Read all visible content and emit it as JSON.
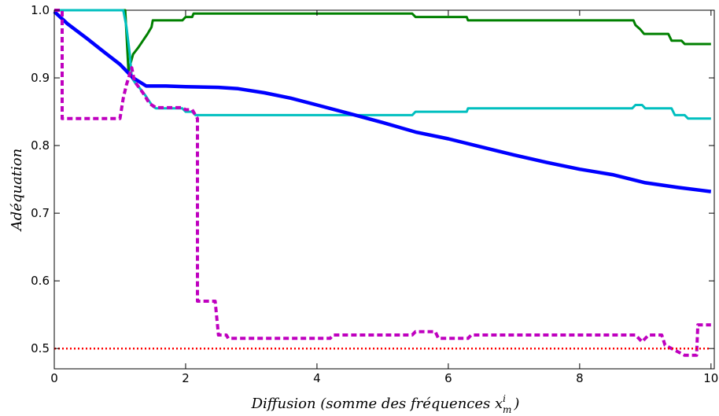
{
  "chart_data": {
    "type": "line",
    "xlabel": "Diffusion (somme des fréquences x",
    "xlabel_sup": "i",
    "xlabel_sub": "m",
    "xlabel_end": ")",
    "ylabel": "Adéquation",
    "xlim": [
      0,
      10.05
    ],
    "ylim": [
      0.47,
      1.0
    ],
    "xticks": [
      0,
      2,
      4,
      6,
      8,
      10
    ],
    "xtick_labels": [
      "0",
      "2",
      "4",
      "6",
      "8",
      "10"
    ],
    "yticks": [
      0.5,
      0.6,
      0.7,
      0.8,
      0.9,
      1.0
    ],
    "ytick_labels": [
      "0.5",
      "0.6",
      "0.7",
      "0.8",
      "0.9",
      "1.0"
    ],
    "grid": false,
    "series": [
      {
        "color": "#008000",
        "style": "solid-steps",
        "points": [
          [
            0,
            1.0
          ],
          [
            1.08,
            1.0
          ],
          [
            1.13,
            0.91
          ],
          [
            1.2,
            0.935
          ],
          [
            1.28,
            0.945
          ],
          [
            1.35,
            0.955
          ],
          [
            1.42,
            0.965
          ],
          [
            1.48,
            0.975
          ],
          [
            1.5,
            0.985
          ],
          [
            1.95,
            0.985
          ],
          [
            2.0,
            0.99
          ],
          [
            2.1,
            0.99
          ],
          [
            2.12,
            0.995
          ],
          [
            5.45,
            0.995
          ],
          [
            5.5,
            0.99
          ],
          [
            6.28,
            0.99
          ],
          [
            6.3,
            0.985
          ],
          [
            8.82,
            0.985
          ],
          [
            8.85,
            0.978
          ],
          [
            8.92,
            0.972
          ],
          [
            8.98,
            0.965
          ],
          [
            9.35,
            0.965
          ],
          [
            9.4,
            0.955
          ],
          [
            9.55,
            0.955
          ],
          [
            9.6,
            0.95
          ],
          [
            10.0,
            0.95
          ]
        ]
      },
      {
        "color": "#00bfbf",
        "style": "solid-steps",
        "points": [
          [
            0,
            1.0
          ],
          [
            1.05,
            1.0
          ],
          [
            1.1,
            0.975
          ],
          [
            1.15,
            0.935
          ],
          [
            1.18,
            0.9
          ],
          [
            1.25,
            0.89
          ],
          [
            1.3,
            0.885
          ],
          [
            1.38,
            0.875
          ],
          [
            1.45,
            0.865
          ],
          [
            1.5,
            0.858
          ],
          [
            1.55,
            0.855
          ],
          [
            1.95,
            0.855
          ],
          [
            2.0,
            0.85
          ],
          [
            2.1,
            0.85
          ],
          [
            2.15,
            0.845
          ],
          [
            5.45,
            0.845
          ],
          [
            5.5,
            0.85
          ],
          [
            6.28,
            0.85
          ],
          [
            6.3,
            0.855
          ],
          [
            8.8,
            0.855
          ],
          [
            8.85,
            0.86
          ],
          [
            8.95,
            0.86
          ],
          [
            9.0,
            0.855
          ],
          [
            9.4,
            0.855
          ],
          [
            9.45,
            0.845
          ],
          [
            9.6,
            0.845
          ],
          [
            9.65,
            0.84
          ],
          [
            10.0,
            0.84
          ]
        ]
      },
      {
        "color": "#0000ff",
        "style": "solid-thick",
        "points": [
          [
            0,
            0.998
          ],
          [
            0.2,
            0.98
          ],
          [
            0.5,
            0.958
          ],
          [
            0.8,
            0.935
          ],
          [
            1.0,
            0.92
          ],
          [
            1.2,
            0.9
          ],
          [
            1.4,
            0.888
          ],
          [
            1.7,
            0.888
          ],
          [
            2.0,
            0.887
          ],
          [
            2.5,
            0.886
          ],
          [
            2.8,
            0.884
          ],
          [
            3.2,
            0.878
          ],
          [
            3.6,
            0.87
          ],
          [
            4.0,
            0.86
          ],
          [
            4.5,
            0.847
          ],
          [
            5.0,
            0.834
          ],
          [
            5.5,
            0.82
          ],
          [
            6.0,
            0.81
          ],
          [
            6.5,
            0.798
          ],
          [
            7.0,
            0.786
          ],
          [
            7.5,
            0.775
          ],
          [
            8.0,
            0.765
          ],
          [
            8.5,
            0.757
          ],
          [
            9.0,
            0.745
          ],
          [
            9.5,
            0.738
          ],
          [
            10.0,
            0.732
          ]
        ]
      },
      {
        "color": "#bf00bf",
        "style": "dashed-steps",
        "points": [
          [
            0,
            1.0
          ],
          [
            0.12,
            1.0
          ],
          [
            0.12,
            0.84
          ],
          [
            1.0,
            0.84
          ],
          [
            1.05,
            0.87
          ],
          [
            1.1,
            0.89
          ],
          [
            1.18,
            0.915
          ],
          [
            1.22,
            0.895
          ],
          [
            1.35,
            0.878
          ],
          [
            1.45,
            0.862
          ],
          [
            1.55,
            0.856
          ],
          [
            1.95,
            0.856
          ],
          [
            2.0,
            0.853
          ],
          [
            2.1,
            0.853
          ],
          [
            2.18,
            0.84
          ],
          [
            2.18,
            0.57
          ],
          [
            2.45,
            0.57
          ],
          [
            2.5,
            0.52
          ],
          [
            2.62,
            0.52
          ],
          [
            2.65,
            0.515
          ],
          [
            4.2,
            0.515
          ],
          [
            4.25,
            0.52
          ],
          [
            5.45,
            0.52
          ],
          [
            5.5,
            0.525
          ],
          [
            5.8,
            0.525
          ],
          [
            5.85,
            0.515
          ],
          [
            6.3,
            0.515
          ],
          [
            6.35,
            0.52
          ],
          [
            8.85,
            0.52
          ],
          [
            8.9,
            0.515
          ],
          [
            8.95,
            0.51
          ],
          [
            9.05,
            0.52
          ],
          [
            9.25,
            0.52
          ],
          [
            9.3,
            0.505
          ],
          [
            9.4,
            0.5
          ],
          [
            9.5,
            0.495
          ],
          [
            9.6,
            0.49
          ],
          [
            9.78,
            0.49
          ],
          [
            9.8,
            0.535
          ],
          [
            10.0,
            0.535
          ]
        ]
      },
      {
        "color": "#ff0000",
        "style": "dotted",
        "points": [
          [
            0,
            0.5
          ],
          [
            10.0,
            0.5
          ]
        ]
      }
    ]
  }
}
